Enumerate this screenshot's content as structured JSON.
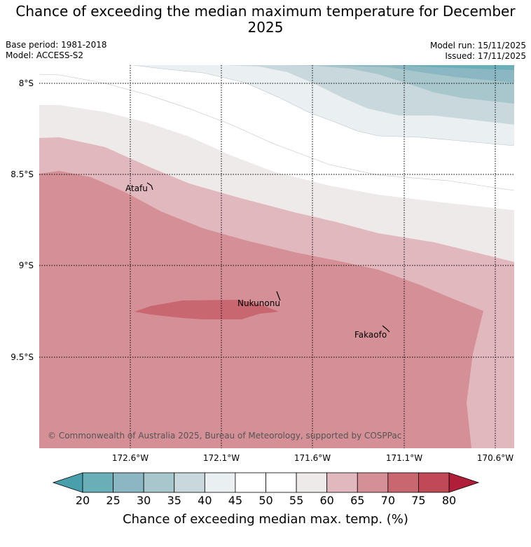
{
  "title": "Chance of exceeding the median maximum temperature for December 2025",
  "meta": {
    "base_period": "Base period: 1981-2018",
    "model": "Model: ACCESS-S2",
    "model_run": "Model run: 15/11/2025",
    "issued": "Issued: 17/11/2025"
  },
  "map": {
    "lat_labels": [
      "8°S",
      "8.5°S",
      "9°S",
      "9.5°S"
    ],
    "lon_labels": [
      "172.6°W",
      "172.1°W",
      "171.6°W",
      "171.1°W",
      "170.6°W"
    ],
    "places": [
      {
        "name": "Atafu"
      },
      {
        "name": "Nukunonu"
      },
      {
        "name": "Fakaofo"
      }
    ],
    "copyright": "© Commonwealth of Australia 2025, Bureau of Meteorology, supported by COSPPac"
  },
  "colorbar": {
    "title": "Chance of exceeding median max. temp. (%)",
    "ticks": [
      "20",
      "25",
      "30",
      "35",
      "40",
      "45",
      "50",
      "55",
      "60",
      "65",
      "70",
      "75",
      "80"
    ],
    "colors": [
      "#6aaeb7",
      "#8ab7c2",
      "#a8c7cc",
      "#c9d8dd",
      "#eaeff2",
      "#ffffff",
      "#ffffff",
      "#eeeaea",
      "#e1b8bd",
      "#d58f96",
      "#c96770",
      "#bf4957"
    ],
    "low_color": "#4a9fad",
    "high_color": "#b01e3a"
  }
}
